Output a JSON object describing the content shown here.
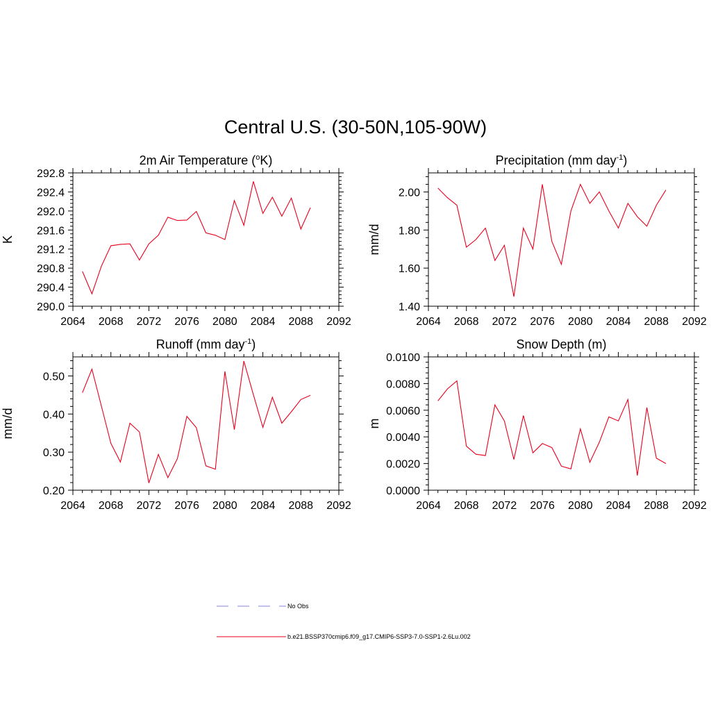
{
  "figure_title": "Central U.S. (30-50N,105-90W)",
  "line_color": "#e8001c",
  "obs_color": "#9c9ce0",
  "legend": {
    "obs_label": "No Obs",
    "model_label": "b.e21.BSSP370cmip6.f09_g17.CMIP6-SSP3-7.0-SSP1-2.6Lu.002"
  },
  "chart_data": [
    {
      "type": "line",
      "title": "2m Air Temperature (",
      "title_sup": "o",
      "title_after": "K)",
      "xlabel": "",
      "ylabel": "K",
      "xlim": [
        2064,
        2092
      ],
      "ylim": [
        290.0,
        292.8
      ],
      "xticks": [
        "2064",
        "2068",
        "2072",
        "2076",
        "2080",
        "2084",
        "2088",
        "2092"
      ],
      "yticks": [
        "290.0",
        "290.4",
        "290.8",
        "291.2",
        "291.6",
        "292.0",
        "292.4",
        "292.8"
      ],
      "grid": false,
      "x": [
        2065,
        2066,
        2067,
        2068,
        2069,
        2070,
        2071,
        2072,
        2073,
        2074,
        2075,
        2076,
        2077,
        2078,
        2079,
        2080,
        2081,
        2082,
        2083,
        2084,
        2085,
        2086,
        2087,
        2088,
        2089
      ],
      "values": [
        290.73,
        290.26,
        290.84,
        291.27,
        291.3,
        291.31,
        290.97,
        291.31,
        291.49,
        291.87,
        291.8,
        291.81,
        291.99,
        291.54,
        291.49,
        291.4,
        292.22,
        291.7,
        292.62,
        291.95,
        292.29,
        291.89,
        292.27,
        291.62,
        292.07
      ]
    },
    {
      "type": "line",
      "title": "Precipitation (mm day",
      "title_sup": "-1",
      "title_after": ")",
      "xlabel": "",
      "ylabel": "mm/d",
      "xlim": [
        2064,
        2092
      ],
      "ylim": [
        1.4,
        2.1
      ],
      "xticks": [
        "2064",
        "2068",
        "2072",
        "2076",
        "2080",
        "2084",
        "2088",
        "2092"
      ],
      "yticks": [
        "1.40",
        "1.60",
        "1.80",
        "2.00"
      ],
      "ytick_values": [
        1.4,
        1.6,
        1.8,
        2.0
      ],
      "grid": false,
      "x": [
        2065,
        2066,
        2067,
        2068,
        2069,
        2070,
        2071,
        2072,
        2073,
        2074,
        2075,
        2076,
        2077,
        2078,
        2079,
        2080,
        2081,
        2082,
        2083,
        2084,
        2085,
        2086,
        2087,
        2088,
        2089
      ],
      "values": [
        2.02,
        1.97,
        1.93,
        1.71,
        1.75,
        1.81,
        1.64,
        1.72,
        1.45,
        1.81,
        1.7,
        2.04,
        1.74,
        1.62,
        1.9,
        2.04,
        1.94,
        2.0,
        1.9,
        1.81,
        1.94,
        1.87,
        1.82,
        1.93,
        2.01
      ]
    },
    {
      "type": "line",
      "title": "Runoff (mm day",
      "title_sup": "-1",
      "title_after": ")",
      "xlabel": "",
      "ylabel": "mm/d",
      "xlim": [
        2064,
        2092
      ],
      "ylim": [
        0.2,
        0.55
      ],
      "xticks": [
        "2064",
        "2068",
        "2072",
        "2076",
        "2080",
        "2084",
        "2088",
        "2092"
      ],
      "yticks": [
        "0.20",
        "0.30",
        "0.40",
        "0.50"
      ],
      "ytick_values": [
        0.2,
        0.3,
        0.4,
        0.5
      ],
      "grid": false,
      "x": [
        2065,
        2066,
        2067,
        2068,
        2069,
        2070,
        2071,
        2072,
        2073,
        2074,
        2075,
        2076,
        2077,
        2078,
        2079,
        2080,
        2081,
        2082,
        2083,
        2084,
        2085,
        2086,
        2087,
        2088,
        2089
      ],
      "values": [
        0.456,
        0.518,
        0.421,
        0.323,
        0.274,
        0.376,
        0.353,
        0.219,
        0.294,
        0.233,
        0.283,
        0.394,
        0.364,
        0.264,
        0.255,
        0.512,
        0.359,
        0.539,
        0.451,
        0.365,
        0.444,
        0.376,
        0.406,
        0.438,
        0.449
      ]
    },
    {
      "type": "line",
      "title": "Snow Depth (m)",
      "title_sup": "",
      "title_after": "",
      "xlabel": "",
      "ylabel": "m",
      "xlim": [
        2064,
        2092
      ],
      "ylim": [
        0.0,
        0.01
      ],
      "xticks": [
        "2064",
        "2068",
        "2072",
        "2076",
        "2080",
        "2084",
        "2088",
        "2092"
      ],
      "yticks": [
        "0.0000",
        "0.0020",
        "0.0040",
        "0.0060",
        "0.0080",
        "0.0100"
      ],
      "ytick_values": [
        0.0,
        0.002,
        0.004,
        0.006,
        0.008,
        0.01
      ],
      "grid": false,
      "x": [
        2065,
        2066,
        2067,
        2068,
        2069,
        2070,
        2071,
        2072,
        2073,
        2074,
        2075,
        2076,
        2077,
        2078,
        2079,
        2080,
        2081,
        2082,
        2083,
        2084,
        2085,
        2086,
        2087,
        2088,
        2089
      ],
      "values": [
        0.0067,
        0.0076,
        0.0082,
        0.0033,
        0.0027,
        0.0026,
        0.0064,
        0.0052,
        0.0023,
        0.0056,
        0.0028,
        0.0035,
        0.0032,
        0.0018,
        0.0016,
        0.0046,
        0.0021,
        0.0036,
        0.0055,
        0.0052,
        0.0068,
        0.0011,
        0.0062,
        0.0024,
        0.002
      ]
    }
  ]
}
